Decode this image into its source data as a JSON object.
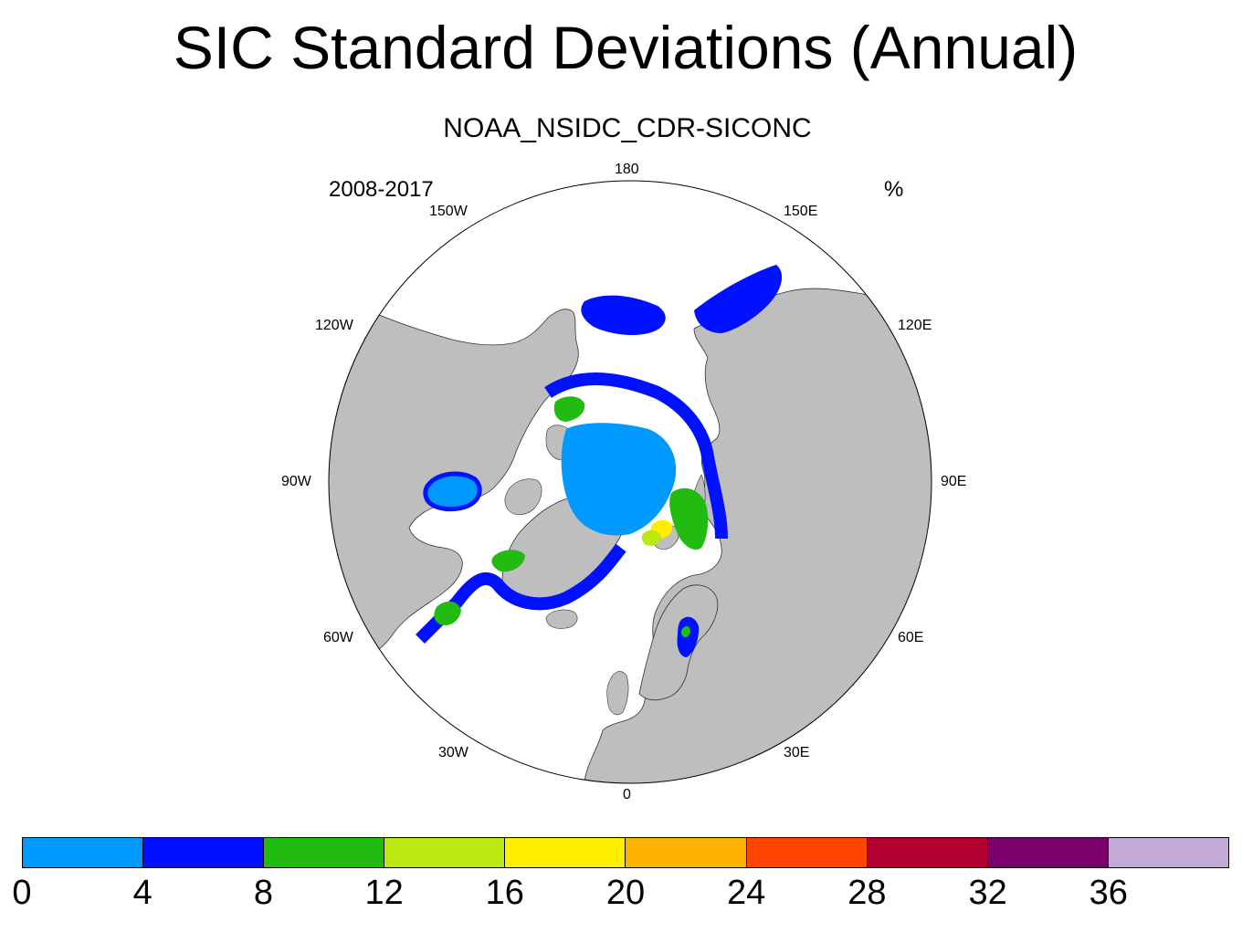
{
  "title": "SIC Standard Deviations (Annual)",
  "subtitle": "NOAA_NSIDC_CDR-SICONC",
  "left_string": "2008-2017",
  "right_string": "%",
  "longitude_labels": [
    "180",
    "150E",
    "120E",
    "90E",
    "60E",
    "30E",
    "0",
    "30W",
    "60W",
    "90W",
    "120W",
    "150W"
  ],
  "colorbar": {
    "colors": [
      "#0099ff",
      "#0011ff",
      "#22bb11",
      "#bbe811",
      "#ffee00",
      "#ffb300",
      "#ff4400",
      "#b30030",
      "#7a006b",
      "#c4aad6"
    ],
    "labels": [
      "0",
      "4",
      "8",
      "12",
      "16",
      "20",
      "24",
      "28",
      "32",
      "36"
    ]
  },
  "colors": {
    "land": "#bebebe",
    "ocean": "#ffffff"
  }
}
